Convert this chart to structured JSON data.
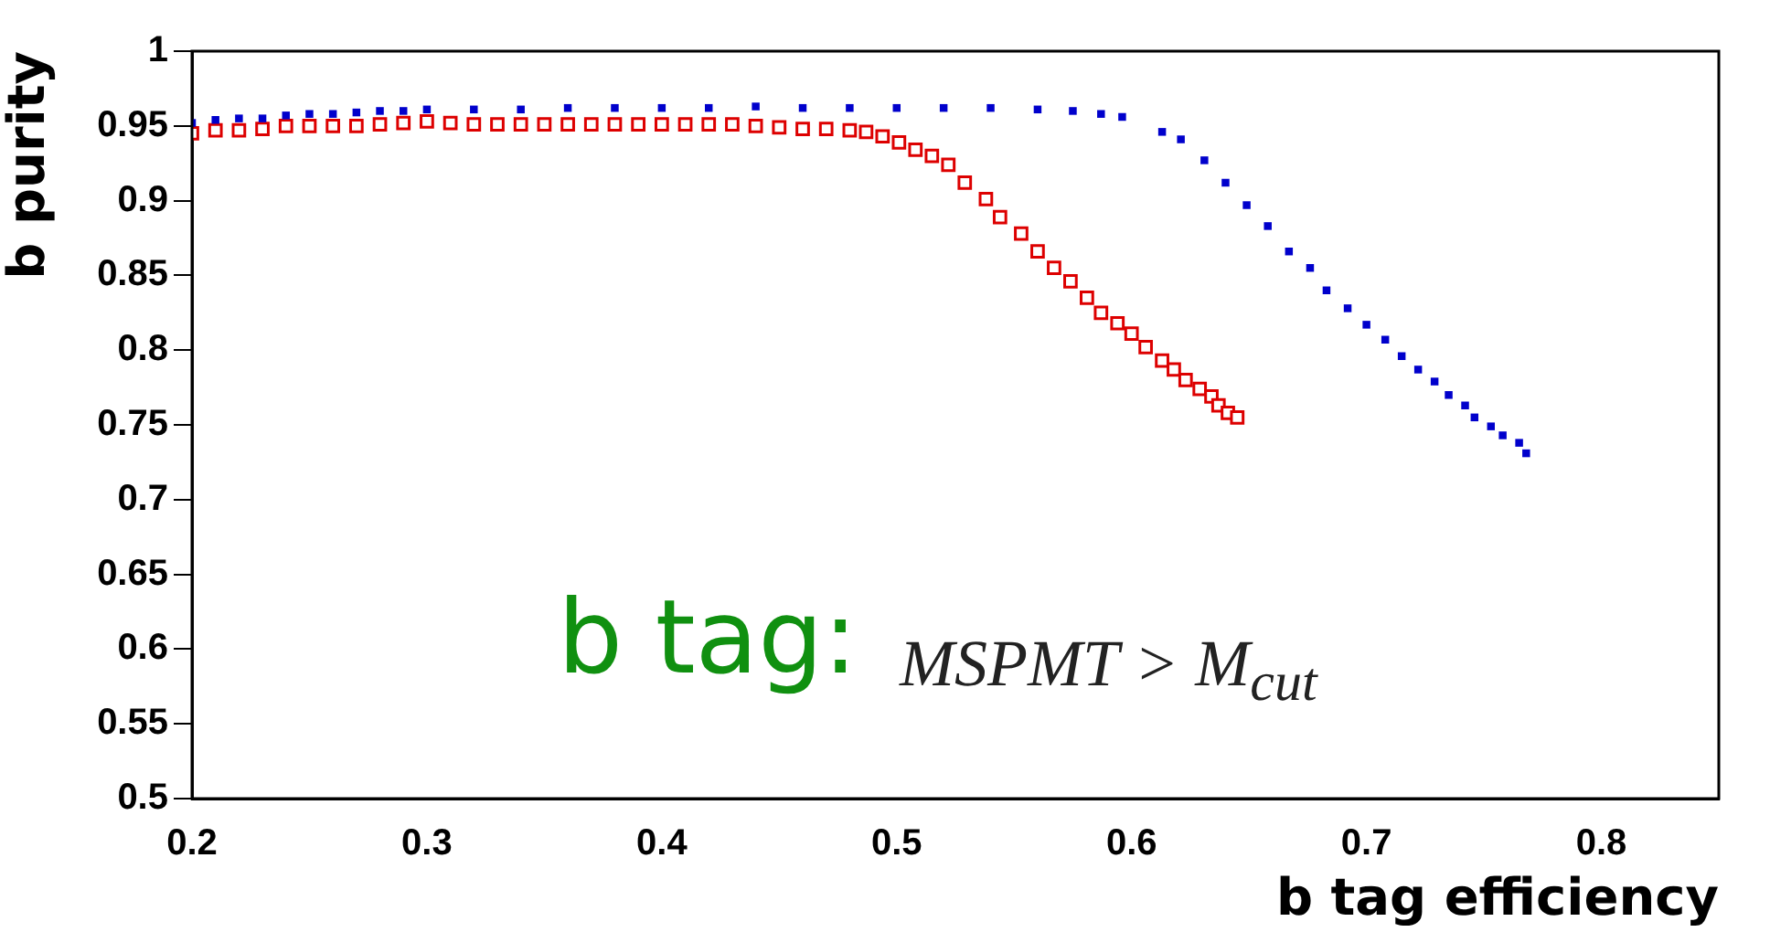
{
  "chart_data": {
    "type": "scatter",
    "xlabel": "b tag efficiency",
    "ylabel": "b purity",
    "annotations": [
      "b tag:",
      "MSPMT > M$_{cut}$"
    ],
    "xlim": [
      0.2,
      0.85
    ],
    "xticks": [
      0.2,
      0.3,
      0.4,
      0.5,
      0.6,
      0.7,
      0.8
    ],
    "ylim": [
      0.5,
      1
    ],
    "yticks": [
      0.5,
      0.55,
      0.6,
      0.65,
      0.7,
      0.75,
      0.8,
      0.85,
      0.9,
      0.95,
      1
    ],
    "grid": false,
    "legend": false,
    "marker": "square",
    "series": [
      {
        "color": "#0000cc",
        "x": [
          0.2,
          0.21,
          0.22,
          0.23,
          0.24,
          0.25,
          0.26,
          0.27,
          0.28,
          0.29,
          0.3,
          0.32,
          0.34,
          0.36,
          0.38,
          0.4,
          0.42,
          0.44,
          0.46,
          0.48,
          0.5,
          0.52,
          0.54,
          0.56,
          0.575,
          0.587,
          0.596,
          0.613,
          0.621,
          0.631,
          0.64,
          0.649,
          0.658,
          0.667,
          0.676,
          0.683,
          0.692,
          0.7,
          0.708,
          0.715,
          0.722,
          0.729,
          0.735,
          0.742,
          0.746,
          0.753,
          0.758,
          0.765,
          0.768
        ],
        "values": [
          0.952,
          0.954,
          0.955,
          0.955,
          0.957,
          0.958,
          0.958,
          0.959,
          0.96,
          0.96,
          0.961,
          0.961,
          0.961,
          0.962,
          0.962,
          0.962,
          0.962,
          0.963,
          0.962,
          0.962,
          0.962,
          0.962,
          0.962,
          0.961,
          0.96,
          0.958,
          0.956,
          0.946,
          0.941,
          0.927,
          0.912,
          0.897,
          0.883,
          0.866,
          0.855,
          0.84,
          0.828,
          0.817,
          0.807,
          0.796,
          0.787,
          0.779,
          0.77,
          0.763,
          0.755,
          0.749,
          0.743,
          0.738,
          0.731
        ]
      },
      {
        "color": "#dd0000",
        "x": [
          0.2,
          0.21,
          0.22,
          0.23,
          0.24,
          0.25,
          0.26,
          0.27,
          0.28,
          0.29,
          0.3,
          0.31,
          0.32,
          0.33,
          0.34,
          0.35,
          0.36,
          0.37,
          0.38,
          0.39,
          0.4,
          0.41,
          0.42,
          0.43,
          0.44,
          0.45,
          0.46,
          0.47,
          0.48,
          0.487,
          0.494,
          0.501,
          0.508,
          0.515,
          0.522,
          0.529,
          0.538,
          0.544,
          0.553,
          0.56,
          0.567,
          0.574,
          0.581,
          0.587,
          0.594,
          0.6,
          0.606,
          0.613,
          0.618,
          0.623,
          0.629,
          0.634,
          0.637,
          0.641,
          0.645
        ],
        "values": [
          0.945,
          0.947,
          0.947,
          0.948,
          0.95,
          0.95,
          0.95,
          0.95,
          0.951,
          0.952,
          0.953,
          0.952,
          0.951,
          0.951,
          0.951,
          0.951,
          0.951,
          0.951,
          0.951,
          0.951,
          0.951,
          0.951,
          0.951,
          0.951,
          0.95,
          0.949,
          0.948,
          0.948,
          0.947,
          0.946,
          0.943,
          0.939,
          0.934,
          0.93,
          0.924,
          0.912,
          0.901,
          0.889,
          0.878,
          0.866,
          0.855,
          0.846,
          0.835,
          0.825,
          0.818,
          0.811,
          0.802,
          0.793,
          0.787,
          0.78,
          0.774,
          0.769,
          0.763,
          0.758,
          0.755
        ]
      }
    ]
  }
}
